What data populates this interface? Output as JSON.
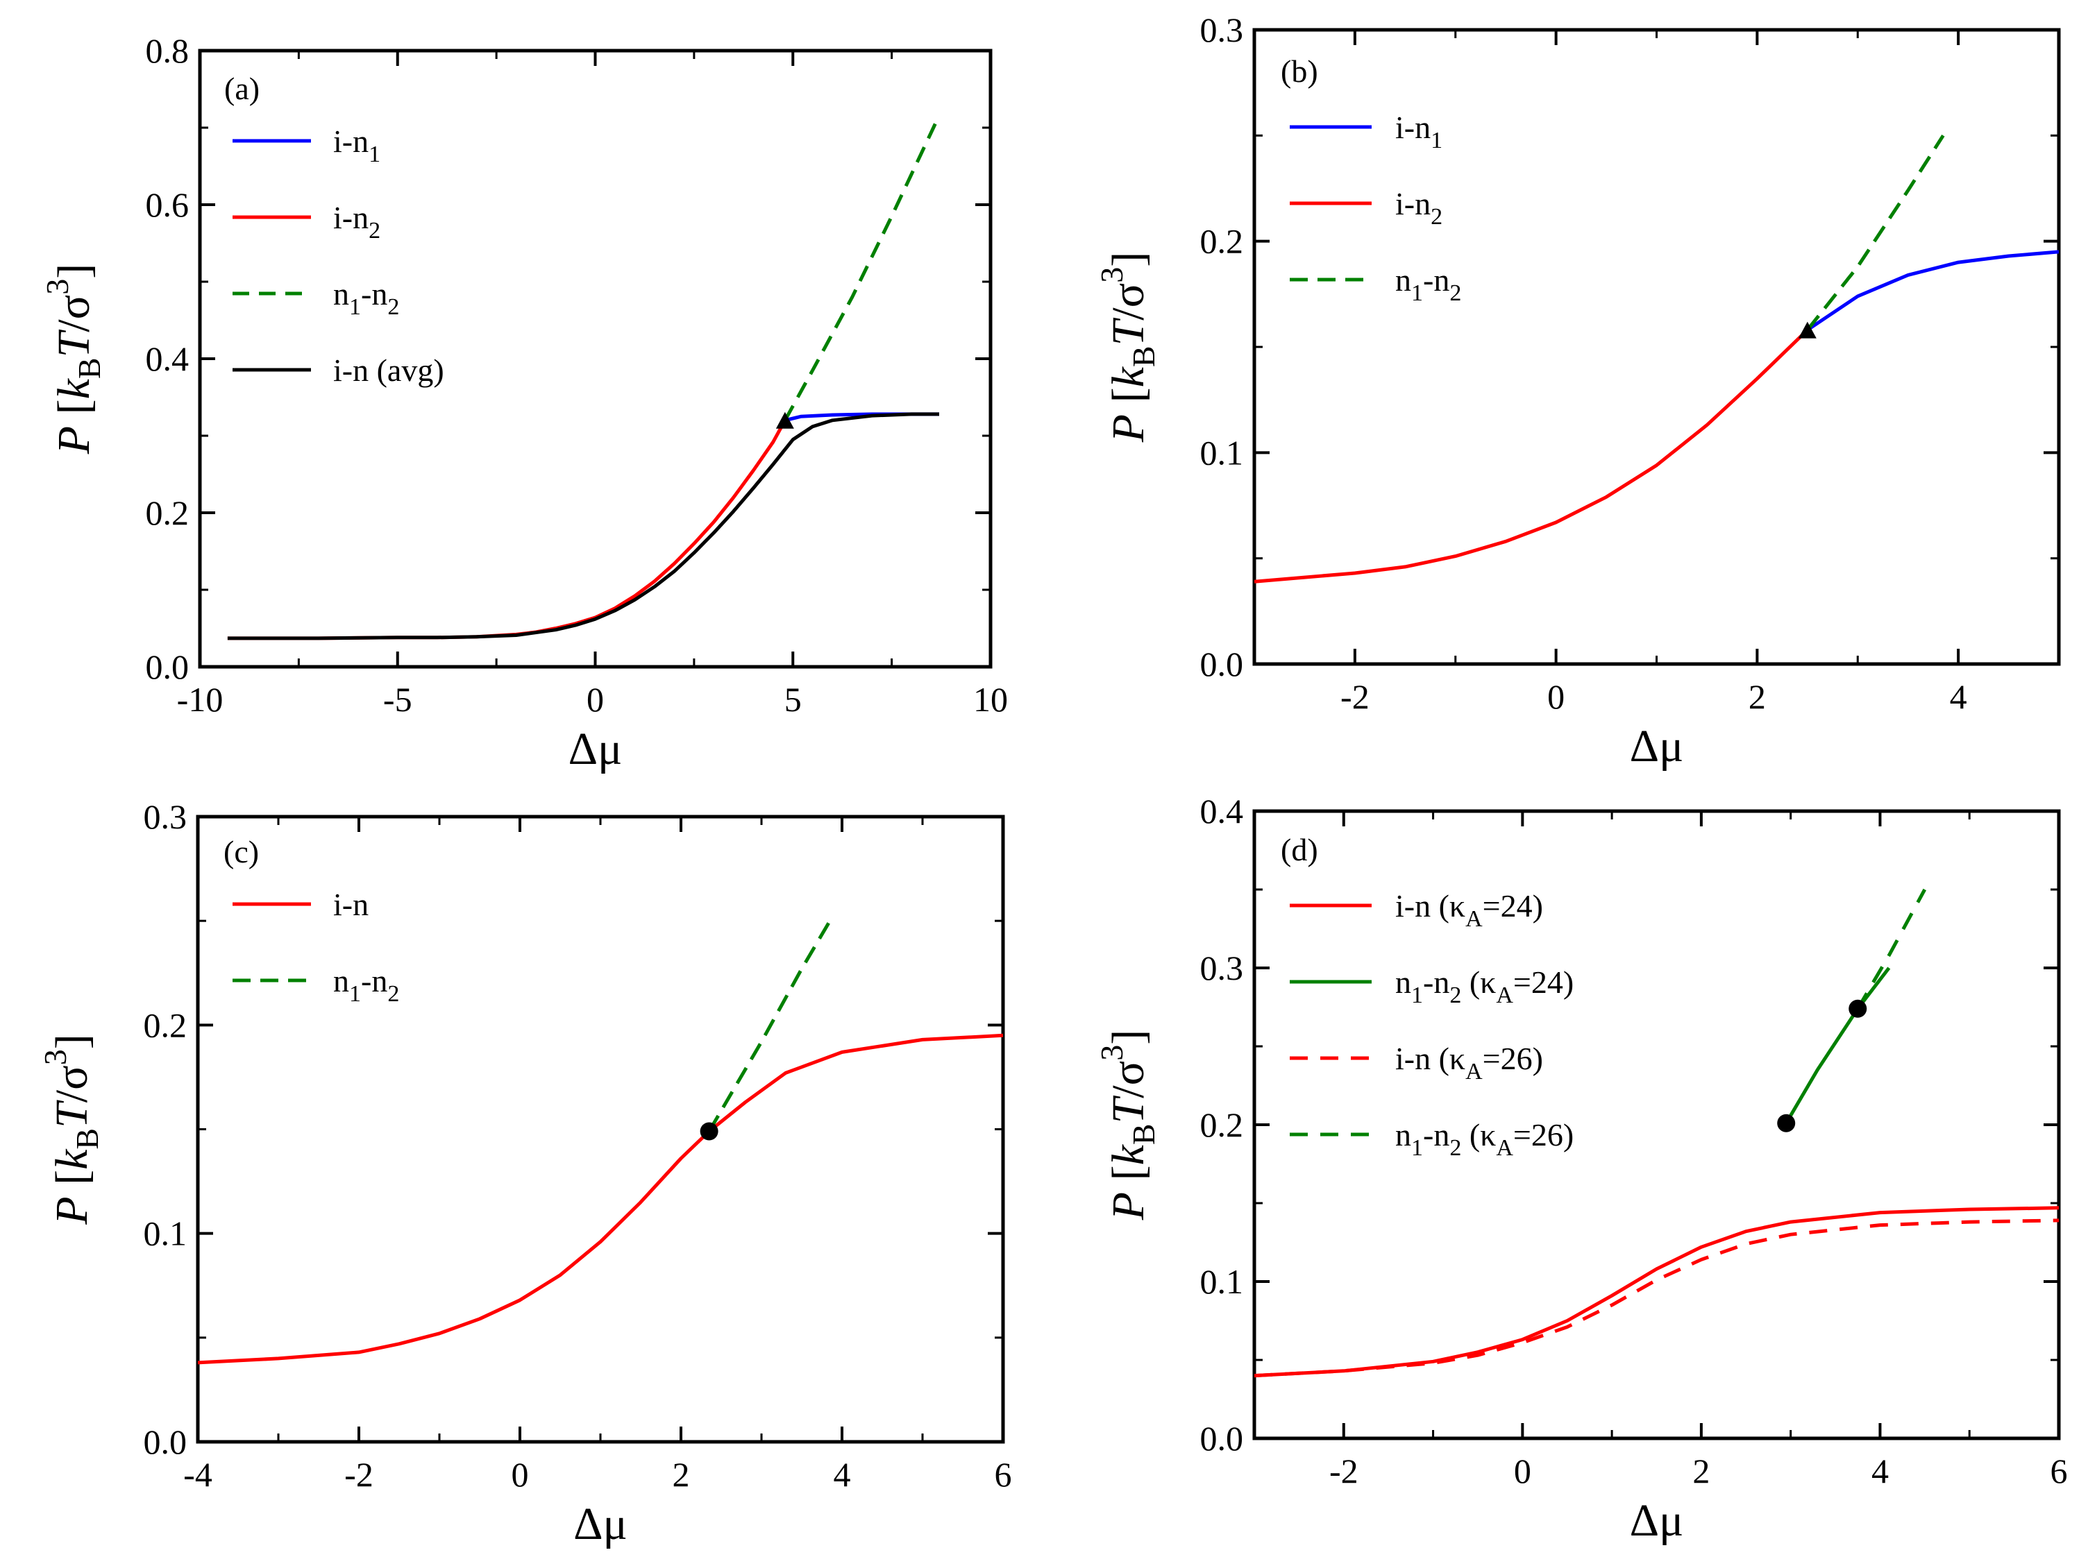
{
  "figure": {
    "ylabel_parts": {
      "P": "P",
      "open": "[",
      "k": "k",
      "B": "B",
      "T": "T",
      "slash": "/",
      "sigma": "σ",
      "three": "3",
      "close": "]"
    },
    "xlabel": "Δμ"
  },
  "chart_data": [
    {
      "panel": "(a)",
      "type": "line",
      "xlim": [
        -10,
        10
      ],
      "ylim": [
        0,
        0.8
      ],
      "xticks": [
        "-10",
        "-5",
        "0",
        "5",
        "10"
      ],
      "yticks": [
        "0.0",
        "0.2",
        "0.4",
        "0.6",
        "0.8"
      ],
      "legend_placement": "top-left",
      "legend": [
        {
          "parts": [
            "i-n",
            "1",
            ""
          ],
          "color": "#0000ff",
          "dash": false
        },
        {
          "parts": [
            "i-n",
            "2",
            ""
          ],
          "color": "#ff0000",
          "dash": false
        },
        {
          "parts": [
            "n",
            "1",
            "-n",
            "2",
            ""
          ],
          "color": "#008000",
          "dash": true
        },
        {
          "parts": [
            "i-n (avg)"
          ],
          "color": "#000000",
          "dash": false
        }
      ],
      "series": [
        {
          "name": "i-n2",
          "color": "#ff0000",
          "dash": false,
          "x": [
            -9.3,
            -7,
            -5,
            -4,
            -3,
            -2,
            -1.5,
            -1,
            -0.5,
            0,
            0.5,
            1,
            1.5,
            2,
            2.5,
            3,
            3.5,
            4,
            4.5,
            4.8
          ],
          "y": [
            0.037,
            0.037,
            0.038,
            0.038,
            0.039,
            0.042,
            0.045,
            0.05,
            0.056,
            0.064,
            0.076,
            0.092,
            0.111,
            0.134,
            0.16,
            0.188,
            0.22,
            0.255,
            0.292,
            0.32
          ]
        },
        {
          "name": "i-n1",
          "color": "#0000ff",
          "dash": false,
          "x": [
            4.8,
            5.2,
            6,
            7,
            8,
            8.7
          ],
          "y": [
            0.32,
            0.325,
            0.327,
            0.328,
            0.328,
            0.328
          ]
        },
        {
          "name": "n1-n2",
          "color": "#008000",
          "dash": true,
          "x": [
            4.8,
            5.5,
            6.5,
            7.5,
            8.6
          ],
          "y": [
            0.32,
            0.385,
            0.48,
            0.585,
            0.705
          ]
        },
        {
          "name": "i-n (avg)",
          "color": "#000000",
          "dash": false,
          "x": [
            -9.3,
            -7,
            -5,
            -4,
            -3,
            -2,
            -1,
            -0.5,
            0,
            0.5,
            1,
            1.5,
            2,
            2.5,
            3,
            3.5,
            4,
            4.5,
            5,
            5.5,
            6,
            7,
            8,
            8.7
          ],
          "y": [
            0.037,
            0.037,
            0.038,
            0.038,
            0.039,
            0.041,
            0.048,
            0.054,
            0.062,
            0.073,
            0.087,
            0.104,
            0.124,
            0.148,
            0.174,
            0.202,
            0.232,
            0.263,
            0.295,
            0.312,
            0.32,
            0.326,
            0.328,
            0.328
          ]
        }
      ],
      "markers": [
        {
          "shape": "triangle",
          "x": 4.8,
          "y": 0.32
        }
      ]
    },
    {
      "panel": "(b)",
      "type": "line",
      "xlim": [
        -3,
        5
      ],
      "ylim": [
        0,
        0.3
      ],
      "xticks": [
        "-2",
        "0",
        "2",
        "4"
      ],
      "yticks": [
        "0.0",
        "0.1",
        "0.2",
        "0.3"
      ],
      "legend_placement": "top-left",
      "legend": [
        {
          "parts": [
            "i-n",
            "1",
            ""
          ],
          "color": "#0000ff",
          "dash": false
        },
        {
          "parts": [
            "i-n",
            "2",
            ""
          ],
          "color": "#ff0000",
          "dash": false
        },
        {
          "parts": [
            "n",
            "1",
            "-n",
            "2",
            ""
          ],
          "color": "#008000",
          "dash": true
        }
      ],
      "series": [
        {
          "name": "i-n2",
          "color": "#ff0000",
          "dash": false,
          "x": [
            -3,
            -2.5,
            -2,
            -1.5,
            -1,
            -0.5,
            0,
            0.5,
            1,
            1.5,
            2,
            2.5
          ],
          "y": [
            0.039,
            0.041,
            0.043,
            0.046,
            0.051,
            0.058,
            0.067,
            0.079,
            0.094,
            0.113,
            0.135,
            0.158
          ]
        },
        {
          "name": "i-n1",
          "color": "#0000ff",
          "dash": false,
          "x": [
            2.5,
            3,
            3.5,
            4,
            4.5,
            5
          ],
          "y": [
            0.158,
            0.174,
            0.184,
            0.19,
            0.193,
            0.195
          ]
        },
        {
          "name": "n1-n2",
          "color": "#008000",
          "dash": true,
          "x": [
            2.5,
            3,
            3.5,
            3.85
          ],
          "y": [
            0.158,
            0.188,
            0.224,
            0.25
          ]
        }
      ],
      "markers": [
        {
          "shape": "triangle",
          "x": 2.5,
          "y": 0.158
        }
      ]
    },
    {
      "panel": "(c)",
      "type": "line",
      "xlim": [
        -4,
        6
      ],
      "ylim": [
        0,
        0.3
      ],
      "xticks": [
        "-4",
        "-2",
        "0",
        "2",
        "4",
        "6"
      ],
      "yticks": [
        "0.0",
        "0.1",
        "0.2",
        "0.3"
      ],
      "legend_placement": "top-left",
      "legend": [
        {
          "parts": [
            "i-n"
          ],
          "color": "#ff0000",
          "dash": false
        },
        {
          "parts": [
            "n",
            "1",
            "-n",
            "2",
            ""
          ],
          "color": "#008000",
          "dash": true
        }
      ],
      "series": [
        {
          "name": "i-n",
          "color": "#ff0000",
          "dash": false,
          "x": [
            -4,
            -3,
            -2,
            -1.5,
            -1,
            -0.5,
            0,
            0.5,
            1,
            1.5,
            2,
            2.35,
            2.8,
            3.3,
            4,
            5,
            6
          ],
          "y": [
            0.038,
            0.04,
            0.043,
            0.047,
            0.052,
            0.059,
            0.068,
            0.08,
            0.096,
            0.115,
            0.136,
            0.149,
            0.163,
            0.177,
            0.187,
            0.193,
            0.195
          ]
        },
        {
          "name": "n1-n2",
          "color": "#008000",
          "dash": true,
          "x": [
            2.35,
            3,
            3.5,
            3.85
          ],
          "y": [
            0.149,
            0.192,
            0.227,
            0.25
          ]
        }
      ],
      "markers": [
        {
          "shape": "circle",
          "x": 2.35,
          "y": 0.149
        }
      ]
    },
    {
      "panel": "(d)",
      "type": "line",
      "xlim": [
        -3,
        6
      ],
      "ylim": [
        0,
        0.4
      ],
      "xticks": [
        "-2",
        "0",
        "2",
        "4",
        "6"
      ],
      "yticks": [
        "0.0",
        "0.1",
        "0.2",
        "0.3",
        "0.4"
      ],
      "legend_placement": "top-left",
      "legend": [
        {
          "parts": [
            "i-n (κ",
            "A",
            "=24)"
          ],
          "color": "#ff0000",
          "dash": false
        },
        {
          "parts": [
            "n",
            "1",
            "-n",
            "2",
            " (κ",
            "A",
            "=24)"
          ],
          "color": "#008000",
          "dash": false
        },
        {
          "parts": [
            "i-n (κ",
            "A",
            "=26)"
          ],
          "color": "#ff0000",
          "dash": true
        },
        {
          "parts": [
            "n",
            "1",
            "-n",
            "2",
            " (κ",
            "A",
            "=26)"
          ],
          "color": "#008000",
          "dash": true
        }
      ],
      "series": [
        {
          "name": "i-n (κA=24)",
          "color": "#ff0000",
          "dash": false,
          "x": [
            -3,
            -2,
            -1,
            -0.5,
            0,
            0.5,
            1,
            1.5,
            2,
            2.5,
            3,
            4,
            5,
            6
          ],
          "y": [
            0.04,
            0.043,
            0.049,
            0.055,
            0.063,
            0.075,
            0.091,
            0.108,
            0.122,
            0.132,
            0.138,
            0.144,
            0.146,
            0.147
          ]
        },
        {
          "name": "i-n (κA=26)",
          "color": "#ff0000",
          "dash": true,
          "x": [
            -3,
            -2,
            -1,
            -0.5,
            0,
            0.5,
            1,
            1.5,
            2,
            2.5,
            3,
            4,
            5,
            6
          ],
          "y": [
            0.04,
            0.043,
            0.048,
            0.053,
            0.061,
            0.071,
            0.085,
            0.101,
            0.114,
            0.124,
            0.13,
            0.136,
            0.138,
            0.139
          ]
        },
        {
          "name": "n1-n2 (κA=24)",
          "color": "#008000",
          "dash": false,
          "x": [
            2.95,
            3.3,
            3.75,
            4.1
          ],
          "y": [
            0.201,
            0.235,
            0.274,
            0.3
          ]
        },
        {
          "name": "n1-n2 (κA=26)",
          "color": "#008000",
          "dash": true,
          "x": [
            3.75,
            4.1,
            4.5
          ],
          "y": [
            0.274,
            0.308,
            0.35
          ]
        }
      ],
      "markers": [
        {
          "shape": "circle",
          "x": 2.95,
          "y": 0.201
        },
        {
          "shape": "circle",
          "x": 3.75,
          "y": 0.274
        }
      ]
    }
  ]
}
